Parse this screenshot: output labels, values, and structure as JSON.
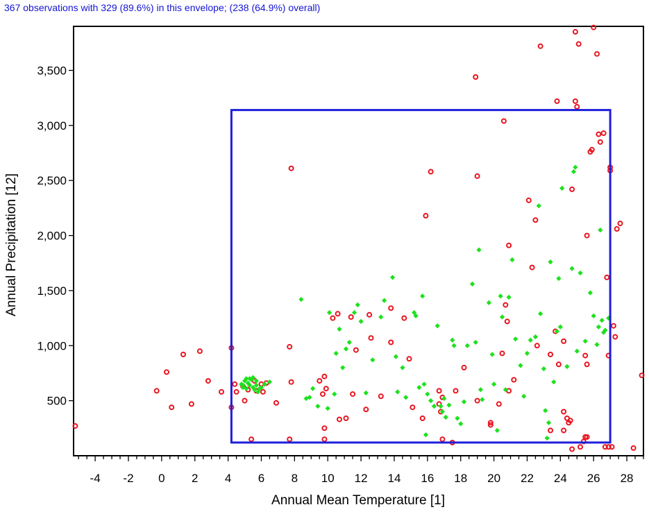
{
  "header_text": "367 observations with 329 (89.6%) in this envelope; (238 (64.9%) overall)",
  "chart_data": {
    "type": "scatter",
    "xlabel": "Annual Mean Temperature [1]",
    "ylabel": "Annual Precipitation [12]",
    "xlim": [
      -5.3,
      29
    ],
    "ylim": [
      0,
      3900
    ],
    "xticks": [
      -4,
      -2,
      0,
      2,
      4,
      6,
      8,
      10,
      12,
      14,
      16,
      18,
      20,
      22,
      24,
      26,
      28
    ],
    "xtick_labels": [
      "-4",
      "-2",
      "0",
      "2",
      "4",
      "6",
      "8",
      "10",
      "12",
      "14",
      "16",
      "18",
      "20",
      "22",
      "24",
      "26",
      "28"
    ],
    "yticks": [
      500,
      1000,
      1500,
      2000,
      2500,
      3000,
      3500
    ],
    "ytick_labels": [
      "500",
      "1,000",
      "1,500",
      "2,000",
      "2,500",
      "3,000",
      "3,500"
    ],
    "grid": false,
    "legend": "none",
    "envelope": {
      "x": [
        4.2,
        27.0
      ],
      "y": [
        120,
        3140
      ],
      "color": "#1e1edc"
    },
    "series": [
      {
        "marker": "circle",
        "color": "#e8141e",
        "points": [
          [
            -5.2,
            270
          ],
          [
            -0.3,
            590
          ],
          [
            0.3,
            760
          ],
          [
            0.6,
            440
          ],
          [
            1.3,
            920
          ],
          [
            1.8,
            470
          ],
          [
            2.3,
            950
          ],
          [
            2.8,
            680
          ],
          [
            3.6,
            580
          ],
          [
            4.2,
            980
          ],
          [
            4.2,
            440
          ],
          [
            4.5,
            580
          ],
          [
            5.0,
            500
          ],
          [
            5.4,
            150
          ],
          [
            5.6,
            680
          ],
          [
            6.0,
            650
          ],
          [
            6.1,
            580
          ],
          [
            6.9,
            480
          ],
          [
            7.7,
            990
          ],
          [
            7.8,
            2610
          ],
          [
            7.7,
            150
          ],
          [
            7.8,
            670
          ],
          [
            9.5,
            680
          ],
          [
            9.7,
            560
          ],
          [
            9.8,
            720
          ],
          [
            9.8,
            250
          ],
          [
            9.8,
            150
          ],
          [
            9.9,
            610
          ],
          [
            10.3,
            1250
          ],
          [
            10.6,
            1290
          ],
          [
            10.7,
            330
          ],
          [
            11.1,
            340
          ],
          [
            11.4,
            1260
          ],
          [
            11.7,
            960
          ],
          [
            11.5,
            560
          ],
          [
            12.3,
            420
          ],
          [
            12.6,
            1070
          ],
          [
            12.5,
            1280
          ],
          [
            13.2,
            540
          ],
          [
            13.8,
            1340
          ],
          [
            13.8,
            1030
          ],
          [
            14.6,
            1250
          ],
          [
            14.9,
            880
          ],
          [
            15.1,
            440
          ],
          [
            15.7,
            340
          ],
          [
            15.9,
            2180
          ],
          [
            16.2,
            2580
          ],
          [
            16.7,
            470
          ],
          [
            16.7,
            590
          ],
          [
            16.9,
            530
          ],
          [
            16.8,
            400
          ],
          [
            16.9,
            150
          ],
          [
            17.5,
            120
          ],
          [
            17.7,
            590
          ],
          [
            18.2,
            800
          ],
          [
            18.9,
            3440
          ],
          [
            19.0,
            2540
          ],
          [
            19.0,
            500
          ],
          [
            19.8,
            300
          ],
          [
            19.8,
            280
          ],
          [
            20.3,
            470
          ],
          [
            20.5,
            930
          ],
          [
            20.6,
            3040
          ],
          [
            20.8,
            1220
          ],
          [
            20.7,
            1370
          ],
          [
            20.9,
            1910
          ],
          [
            20.9,
            590
          ],
          [
            21.2,
            690
          ],
          [
            22.1,
            2320
          ],
          [
            22.3,
            1710
          ],
          [
            22.5,
            2140
          ],
          [
            22.6,
            1000
          ],
          [
            22.8,
            3720
          ],
          [
            23.4,
            920
          ],
          [
            23.4,
            230
          ],
          [
            23.8,
            3220
          ],
          [
            23.9,
            830
          ],
          [
            23.7,
            1130
          ],
          [
            24.2,
            1040
          ],
          [
            24.2,
            400
          ],
          [
            24.2,
            230
          ],
          [
            24.4,
            340
          ],
          [
            24.5,
            300
          ],
          [
            24.6,
            320
          ],
          [
            24.7,
            2420
          ],
          [
            24.7,
            60
          ],
          [
            24.9,
            3850
          ],
          [
            24.9,
            3220
          ],
          [
            25.0,
            3170
          ],
          [
            25.1,
            3740
          ],
          [
            25.2,
            80
          ],
          [
            25.4,
            130
          ],
          [
            25.5,
            170
          ],
          [
            25.6,
            170
          ],
          [
            25.5,
            910
          ],
          [
            25.6,
            830
          ],
          [
            25.6,
            2000
          ],
          [
            25.8,
            2760
          ],
          [
            25.9,
            2780
          ],
          [
            26.0,
            3890
          ],
          [
            26.2,
            3650
          ],
          [
            26.3,
            2920
          ],
          [
            26.4,
            2850
          ],
          [
            26.6,
            2930
          ],
          [
            26.8,
            1620
          ],
          [
            26.9,
            910
          ],
          [
            27.0,
            2620
          ],
          [
            27.0,
            2590
          ],
          [
            27.2,
            1180
          ],
          [
            27.3,
            1080
          ],
          [
            27.4,
            2060
          ],
          [
            27.6,
            2110
          ],
          [
            26.7,
            80
          ],
          [
            26.9,
            80
          ],
          [
            27.1,
            80
          ],
          [
            28.4,
            70
          ],
          [
            28.9,
            730
          ],
          [
            4.4,
            650
          ],
          [
            4.9,
            630
          ],
          [
            5.2,
            600
          ],
          [
            5.7,
            590
          ],
          [
            6.3,
            660
          ]
        ]
      },
      {
        "marker": "diamond",
        "color": "#1ee11e",
        "points": [
          [
            4.8,
            650
          ],
          [
            4.9,
            620
          ],
          [
            5.0,
            680
          ],
          [
            5.1,
            700
          ],
          [
            5.2,
            660
          ],
          [
            5.3,
            640
          ],
          [
            5.4,
            690
          ],
          [
            5.5,
            620
          ],
          [
            5.6,
            600
          ],
          [
            5.7,
            640
          ],
          [
            5.8,
            580
          ],
          [
            5.9,
            610
          ],
          [
            6.0,
            620
          ],
          [
            6.2,
            650
          ],
          [
            6.5,
            670
          ],
          [
            4.9,
            640
          ],
          [
            5.1,
            610
          ],
          [
            5.3,
            700
          ],
          [
            5.5,
            710
          ],
          [
            5.7,
            680
          ],
          [
            8.4,
            1420
          ],
          [
            8.7,
            520
          ],
          [
            8.9,
            530
          ],
          [
            9.1,
            610
          ],
          [
            9.4,
            450
          ],
          [
            10.0,
            430
          ],
          [
            10.1,
            1300
          ],
          [
            10.4,
            560
          ],
          [
            10.5,
            930
          ],
          [
            10.7,
            1150
          ],
          [
            10.9,
            800
          ],
          [
            11.1,
            970
          ],
          [
            11.3,
            1030
          ],
          [
            11.6,
            1300
          ],
          [
            11.8,
            1370
          ],
          [
            12.0,
            1220
          ],
          [
            12.3,
            570
          ],
          [
            12.7,
            870
          ],
          [
            13.2,
            1260
          ],
          [
            13.4,
            1410
          ],
          [
            13.9,
            1620
          ],
          [
            14.1,
            900
          ],
          [
            14.2,
            580
          ],
          [
            14.5,
            800
          ],
          [
            14.7,
            530
          ],
          [
            15.2,
            1300
          ],
          [
            15.3,
            1270
          ],
          [
            15.5,
            620
          ],
          [
            15.7,
            1450
          ],
          [
            15.8,
            650
          ],
          [
            15.9,
            190
          ],
          [
            16.2,
            500
          ],
          [
            16.4,
            450
          ],
          [
            16.6,
            1180
          ],
          [
            16.8,
            450
          ],
          [
            16.9,
            400
          ],
          [
            17.1,
            350
          ],
          [
            17.3,
            460
          ],
          [
            17.5,
            1050
          ],
          [
            17.6,
            1000
          ],
          [
            17.8,
            340
          ],
          [
            18.0,
            290
          ],
          [
            18.2,
            490
          ],
          [
            18.4,
            1000
          ],
          [
            18.7,
            1560
          ],
          [
            18.9,
            1030
          ],
          [
            19.1,
            1870
          ],
          [
            19.2,
            600
          ],
          [
            19.3,
            510
          ],
          [
            19.7,
            1390
          ],
          [
            19.9,
            920
          ],
          [
            20.0,
            650
          ],
          [
            20.2,
            230
          ],
          [
            20.4,
            1450
          ],
          [
            20.5,
            1260
          ],
          [
            20.7,
            600
          ],
          [
            20.9,
            1440
          ],
          [
            21.1,
            1780
          ],
          [
            21.3,
            1060
          ],
          [
            21.6,
            820
          ],
          [
            21.8,
            540
          ],
          [
            22.0,
            930
          ],
          [
            22.2,
            1050
          ],
          [
            22.5,
            1080
          ],
          [
            22.7,
            2270
          ],
          [
            22.8,
            1290
          ],
          [
            23.0,
            790
          ],
          [
            23.1,
            410
          ],
          [
            23.3,
            300
          ],
          [
            23.4,
            1760
          ],
          [
            23.6,
            670
          ],
          [
            23.8,
            1130
          ],
          [
            23.9,
            1610
          ],
          [
            24.0,
            1170
          ],
          [
            24.1,
            2430
          ],
          [
            24.4,
            810
          ],
          [
            24.7,
            1700
          ],
          [
            24.8,
            2580
          ],
          [
            24.9,
            2620
          ],
          [
            25.0,
            950
          ],
          [
            25.2,
            1660
          ],
          [
            25.5,
            1040
          ],
          [
            25.8,
            1480
          ],
          [
            26.0,
            1270
          ],
          [
            26.2,
            1010
          ],
          [
            26.3,
            1170
          ],
          [
            26.4,
            2050
          ],
          [
            26.5,
            1230
          ],
          [
            26.6,
            1120
          ],
          [
            26.7,
            1140
          ],
          [
            26.9,
            1250
          ],
          [
            23.2,
            160
          ],
          [
            16.0,
            560
          ],
          [
            17.0,
            520
          ]
        ]
      }
    ]
  }
}
